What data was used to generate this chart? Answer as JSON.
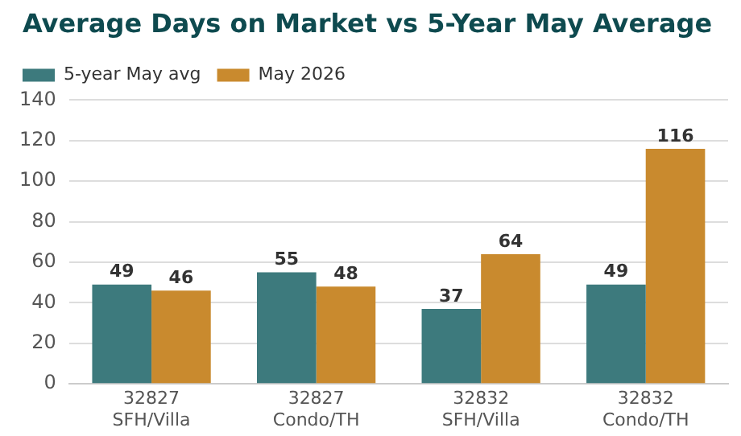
{
  "chart_data": {
    "type": "bar",
    "title": "Average Days on Market vs 5-Year May Average",
    "categories": [
      "32827\nSFH/Villa",
      "32827\nCondo/TH",
      "32832\nSFH/Villa",
      "32832\nCondo/TH"
    ],
    "series": [
      {
        "name": "5-year May avg",
        "color": "#3d7a7d",
        "values": [
          49,
          55,
          37,
          49
        ]
      },
      {
        "name": "May 2026",
        "color": "#c98a2e",
        "values": [
          46,
          48,
          64,
          116
        ]
      }
    ],
    "ylim": [
      0,
      140
    ],
    "yticks": [
      0,
      20,
      40,
      60,
      80,
      100,
      120,
      140
    ],
    "grid": "y",
    "legend": "top left",
    "data_labels": true
  }
}
